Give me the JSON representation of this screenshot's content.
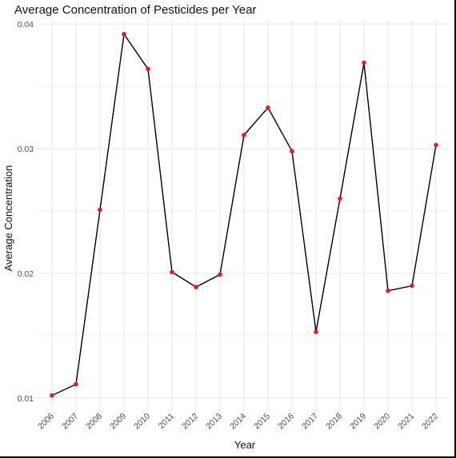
{
  "chart_data": {
    "type": "line",
    "title": "Average Concentration of Pesticides per Year",
    "xlabel": "Year",
    "ylabel": "Average Concentration",
    "x": [
      "2006",
      "2007",
      "2008",
      "2009",
      "2010",
      "2011",
      "2012",
      "2013",
      "2014",
      "2015",
      "2016",
      "2017",
      "2018",
      "2019",
      "2020",
      "2021",
      "2022"
    ],
    "series": [
      {
        "values": [
          0.0102,
          0.0111,
          0.0251,
          0.0392,
          0.0364,
          0.0201,
          0.0189,
          0.0199,
          0.0311,
          0.0333,
          0.0298,
          0.0153,
          0.026,
          0.0369,
          0.0186,
          0.019,
          0.0303
        ]
      }
    ],
    "yticks": [
      "0.01",
      "0.02",
      "0.03",
      "0.04"
    ],
    "ylim": [
      0.0089,
      0.0404
    ],
    "grid": true,
    "legend": "none",
    "colors": {
      "line": "#000000",
      "points": "#e41a1c",
      "grid": "#e6e6e6"
    }
  }
}
